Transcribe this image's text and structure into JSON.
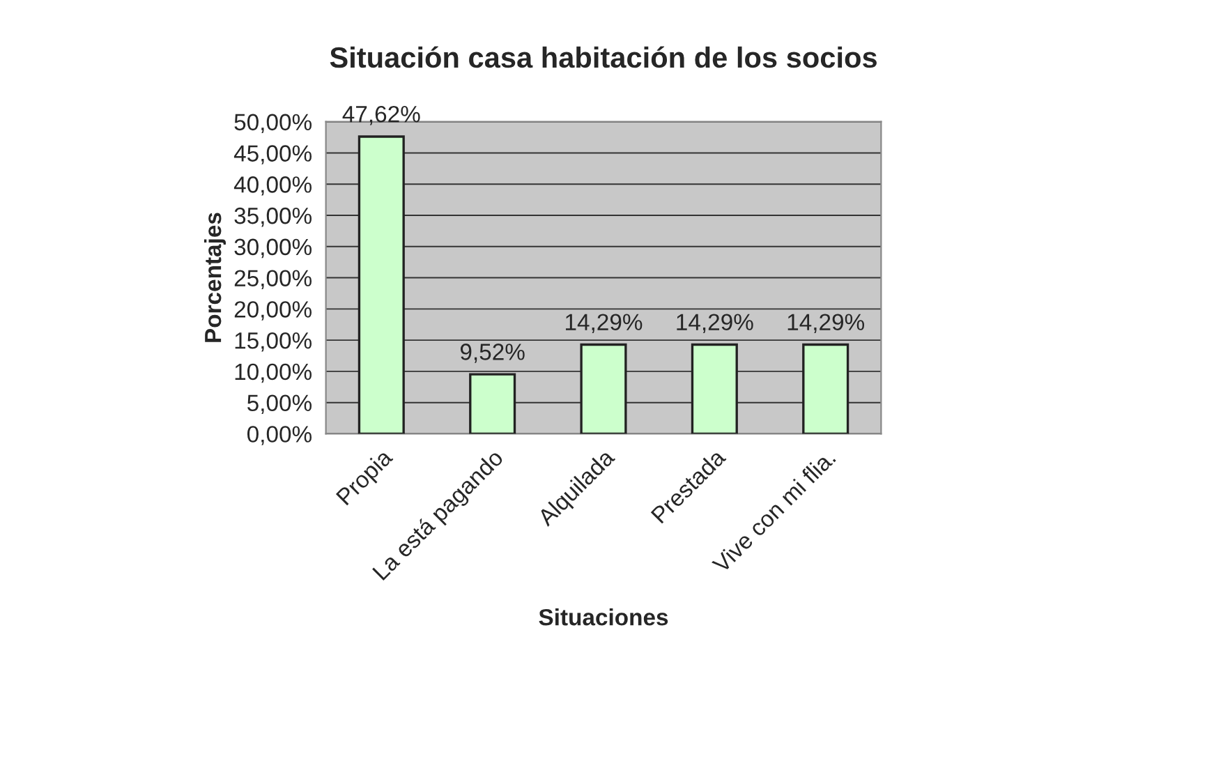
{
  "chart_data": {
    "type": "bar",
    "title": "Situación casa habitación de los socios",
    "xlabel": "Situaciones",
    "ylabel": "Porcentajes",
    "categories": [
      "Propia",
      "La está pagando",
      "Alquilada",
      "Prestada",
      "Vive con mi flia."
    ],
    "values": [
      47.62,
      9.52,
      14.29,
      14.29,
      14.29
    ],
    "value_labels": [
      "47,62%",
      "9,52%",
      "14,29%",
      "14,29%",
      "14,29%"
    ],
    "color": "#ccffcc",
    "ylim": [
      0,
      50
    ],
    "yticks": [
      {
        "value": 0,
        "label": "0,00%"
      },
      {
        "value": 5,
        "label": "5,00%"
      },
      {
        "value": 10,
        "label": "10,00%"
      },
      {
        "value": 15,
        "label": "15,00%"
      },
      {
        "value": 20,
        "label": "20,00%"
      },
      {
        "value": 25,
        "label": "25,00%"
      },
      {
        "value": 30,
        "label": "30,00%"
      },
      {
        "value": 35,
        "label": "35,00%"
      },
      {
        "value": 40,
        "label": "40,00%"
      },
      {
        "value": 45,
        "label": "45,00%"
      },
      {
        "value": 50,
        "label": "50,00%"
      }
    ],
    "grid": "y"
  }
}
